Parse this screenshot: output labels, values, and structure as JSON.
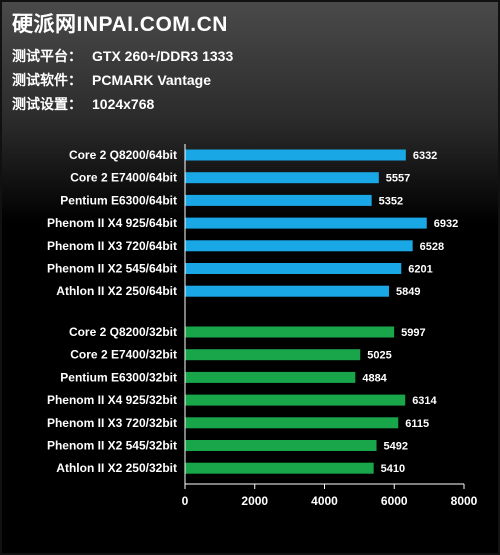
{
  "header": {
    "site_title": "硬派网INPAI.COM.CN",
    "info": [
      {
        "key": "测试平台：",
        "value": "GTX 260+/DDR3 1333"
      },
      {
        "key": "测试软件：",
        "value": "PCMARK Vantage"
      },
      {
        "key": "测试设置：",
        "value": "1024x768"
      }
    ]
  },
  "colors": {
    "series_64bit": "#1aa7e6",
    "series_32bit": "#19a64a",
    "background": "#000000",
    "text": "#ffffff"
  },
  "chart_data": {
    "type": "bar",
    "orientation": "horizontal",
    "title": "",
    "xlabel": "",
    "ylabel": "",
    "xlim": [
      0,
      8000
    ],
    "x_ticks": [
      0,
      2000,
      4000,
      6000,
      8000
    ],
    "grid": false,
    "legend": "none",
    "series": [
      {
        "categories": [
          "Core 2 Q8200/64bit",
          "Core 2 E7400/64bit",
          "Pentium E6300/64bit",
          "Phenom II X4 925/64bit",
          "Phenom II X3 720/64bit",
          "Phenom II X2 545/64bit",
          "Athlon II X2 250/64bit"
        ],
        "values": [
          6332,
          5557,
          5352,
          6932,
          6528,
          6201,
          5849
        ]
      },
      {
        "categories": [
          "Core 2 Q8200/32bit",
          "Core 2 E7400/32bit",
          "Pentium E6300/32bit",
          "Phenom II X4 925/32bit",
          "Phenom II X3 720/32bit",
          "Phenom II X2 545/32bit",
          "Athlon II X2 250/32bit"
        ],
        "values": [
          5997,
          5025,
          4884,
          6314,
          6115,
          5492,
          5410
        ]
      }
    ]
  }
}
